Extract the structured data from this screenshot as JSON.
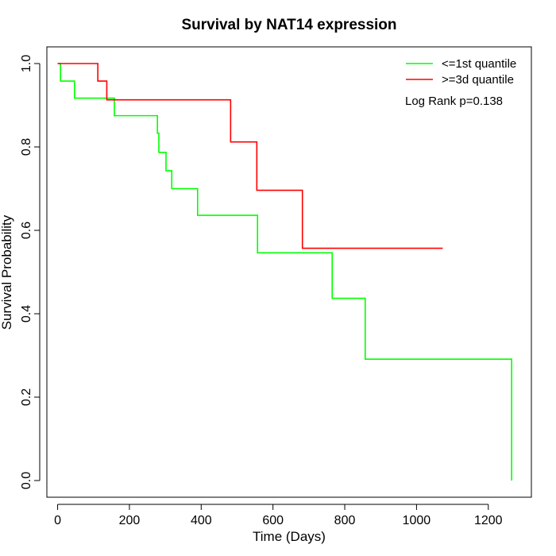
{
  "chart_data": {
    "type": "line",
    "title": "Survival by NAT14 expression",
    "xlabel": "Time (Days)",
    "ylabel": "Survival Probability",
    "xlim": [
      -30,
      1320
    ],
    "ylim": [
      -0.04,
      1.04
    ],
    "x_ticks": [
      0,
      200,
      400,
      600,
      800,
      1000,
      1200
    ],
    "y_ticks": [
      0.0,
      0.2,
      0.4,
      0.6,
      0.8,
      1.0
    ],
    "x_tick_labels": [
      "0",
      "200",
      "400",
      "600",
      "800",
      "1000",
      "1200"
    ],
    "y_tick_labels": [
      "0.0",
      "0.2",
      "0.4",
      "0.6",
      "0.8",
      "1.0"
    ],
    "legend_position": "top-right",
    "annotation": "Log Rank p=0.138",
    "series": [
      {
        "name": "<=1st quantile",
        "color": "#00ff00",
        "x": [
          0,
          8,
          47,
          158,
          278,
          282,
          302,
          318,
          390,
          557,
          765,
          857,
          1265,
          1265
        ],
        "y": [
          1.0,
          0.958,
          0.917,
          0.875,
          0.833,
          0.787,
          0.743,
          0.7,
          0.636,
          0.546,
          0.437,
          0.291,
          0.291,
          0.0
        ]
      },
      {
        "name": ">=3d quantile",
        "color": "#ff0000",
        "x": [
          0,
          112,
          128,
          137,
          482,
          555,
          682,
          1073
        ],
        "y": [
          1.0,
          0.958,
          0.958,
          0.913,
          0.812,
          0.696,
          0.557,
          0.557
        ]
      }
    ]
  }
}
